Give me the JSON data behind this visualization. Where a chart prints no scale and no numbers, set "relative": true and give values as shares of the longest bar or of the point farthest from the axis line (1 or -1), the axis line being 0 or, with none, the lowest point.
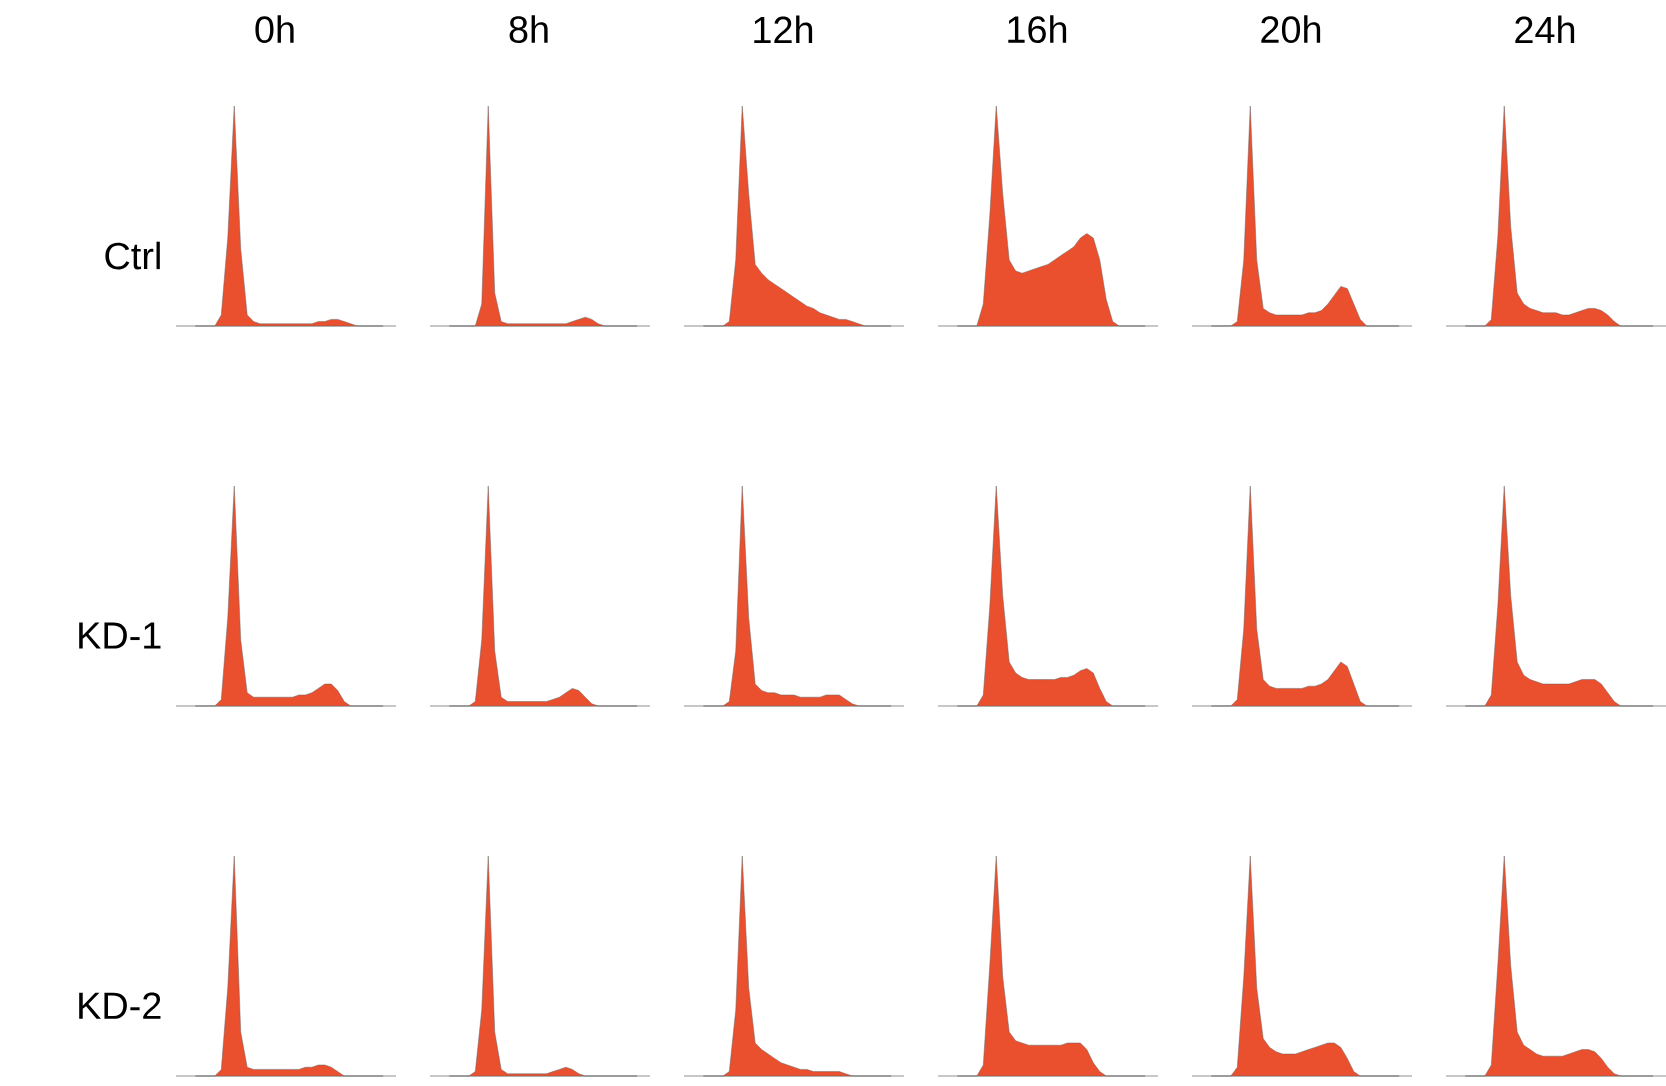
{
  "chart_data": [
    {
      "type": "area",
      "relative": true,
      "title": "0h",
      "ylabel": "Ctrl",
      "color": "#ea4f2e",
      "categories": [
        null,
        null,
        null,
        null,
        null,
        null,
        null,
        null,
        null,
        null,
        null,
        null,
        null,
        null,
        null,
        null,
        null,
        null,
        null,
        null,
        null,
        null,
        null,
        null,
        null,
        null,
        null,
        null,
        null,
        null
      ],
      "values": [
        0,
        0,
        0,
        0,
        0.05,
        0.4,
        1,
        0.35,
        0.05,
        0.02,
        0.01,
        0.01,
        0.01,
        0.01,
        0.01,
        0.01,
        0.01,
        0.01,
        0.01,
        0.02,
        0.02,
        0.03,
        0.03,
        0.02,
        0.01,
        0,
        0,
        0,
        0,
        0
      ]
    },
    {
      "type": "area",
      "relative": true,
      "title": "8h",
      "color": "#ea4f2e",
      "categories": [
        null,
        null,
        null,
        null,
        null,
        null,
        null,
        null,
        null,
        null,
        null,
        null,
        null,
        null,
        null,
        null,
        null,
        null,
        null,
        null,
        null,
        null,
        null,
        null,
        null,
        null,
        null,
        null,
        null,
        null
      ],
      "values": [
        0,
        0,
        0,
        0,
        0,
        0.1,
        1,
        0.15,
        0.02,
        0.01,
        0.01,
        0.01,
        0.01,
        0.01,
        0.01,
        0.01,
        0.01,
        0.01,
        0.01,
        0.02,
        0.03,
        0.04,
        0.03,
        0.01,
        0,
        0,
        0,
        0,
        0,
        0
      ]
    },
    {
      "type": "area",
      "relative": true,
      "title": "12h",
      "color": "#ea4f2e",
      "categories": [
        null,
        null,
        null,
        null,
        null,
        null,
        null,
        null,
        null,
        null,
        null,
        null,
        null,
        null,
        null,
        null,
        null,
        null,
        null,
        null,
        null,
        null,
        null,
        null,
        null,
        null,
        null,
        null,
        null,
        null
      ],
      "values": [
        0,
        0,
        0,
        0,
        0.02,
        0.3,
        1,
        0.6,
        0.28,
        0.24,
        0.21,
        0.19,
        0.17,
        0.15,
        0.13,
        0.11,
        0.09,
        0.08,
        0.06,
        0.05,
        0.04,
        0.03,
        0.03,
        0.02,
        0.01,
        0,
        0,
        0,
        0,
        0
      ]
    },
    {
      "type": "area",
      "relative": true,
      "title": "16h",
      "color": "#ea4f2e",
      "categories": [
        null,
        null,
        null,
        null,
        null,
        null,
        null,
        null,
        null,
        null,
        null,
        null,
        null,
        null,
        null,
        null,
        null,
        null,
        null,
        null,
        null,
        null,
        null,
        null,
        null,
        null,
        null,
        null,
        null,
        null
      ],
      "values": [
        0,
        0,
        0,
        0,
        0.1,
        0.5,
        1,
        0.6,
        0.3,
        0.25,
        0.24,
        0.25,
        0.26,
        0.27,
        0.28,
        0.3,
        0.32,
        0.34,
        0.36,
        0.4,
        0.42,
        0.4,
        0.3,
        0.12,
        0.02,
        0,
        0,
        0,
        0,
        0
      ]
    },
    {
      "type": "area",
      "relative": true,
      "title": "20h",
      "color": "#ea4f2e",
      "categories": [
        null,
        null,
        null,
        null,
        null,
        null,
        null,
        null,
        null,
        null,
        null,
        null,
        null,
        null,
        null,
        null,
        null,
        null,
        null,
        null,
        null,
        null,
        null,
        null,
        null,
        null,
        null,
        null,
        null,
        null
      ],
      "values": [
        0,
        0,
        0,
        0,
        0.02,
        0.3,
        1,
        0.3,
        0.08,
        0.06,
        0.05,
        0.05,
        0.05,
        0.05,
        0.05,
        0.06,
        0.06,
        0.07,
        0.1,
        0.14,
        0.18,
        0.17,
        0.1,
        0.03,
        0,
        0,
        0,
        0,
        0,
        0
      ]
    },
    {
      "type": "area",
      "relative": true,
      "title": "24h",
      "color": "#ea4f2e",
      "categories": [
        null,
        null,
        null,
        null,
        null,
        null,
        null,
        null,
        null,
        null,
        null,
        null,
        null,
        null,
        null,
        null,
        null,
        null,
        null,
        null,
        null,
        null,
        null,
        null,
        null,
        null,
        null,
        null,
        null,
        null
      ],
      "values": [
        0,
        0,
        0,
        0,
        0.03,
        0.4,
        1,
        0.45,
        0.15,
        0.1,
        0.08,
        0.07,
        0.06,
        0.06,
        0.06,
        0.05,
        0.05,
        0.06,
        0.07,
        0.08,
        0.08,
        0.07,
        0.05,
        0.02,
        0,
        0,
        0,
        0,
        0,
        0
      ]
    },
    {
      "type": "area",
      "relative": true,
      "ylabel": "KD-1",
      "color": "#ea4f2e",
      "categories": [
        null,
        null,
        null,
        null,
        null,
        null,
        null,
        null,
        null,
        null,
        null,
        null,
        null,
        null,
        null,
        null,
        null,
        null,
        null,
        null,
        null,
        null,
        null,
        null,
        null,
        null,
        null,
        null,
        null,
        null
      ],
      "values": [
        0,
        0,
        0,
        0,
        0.03,
        0.4,
        1,
        0.3,
        0.06,
        0.04,
        0.04,
        0.04,
        0.04,
        0.04,
        0.04,
        0.04,
        0.05,
        0.05,
        0.06,
        0.08,
        0.1,
        0.1,
        0.07,
        0.02,
        0,
        0,
        0,
        0,
        0,
        0
      ]
    },
    {
      "type": "area",
      "relative": true,
      "color": "#ea4f2e",
      "categories": [
        null,
        null,
        null,
        null,
        null,
        null,
        null,
        null,
        null,
        null,
        null,
        null,
        null,
        null,
        null,
        null,
        null,
        null,
        null,
        null,
        null,
        null,
        null,
        null,
        null,
        null,
        null,
        null,
        null,
        null
      ],
      "values": [
        0,
        0,
        0,
        0,
        0.02,
        0.3,
        1,
        0.25,
        0.04,
        0.02,
        0.02,
        0.02,
        0.02,
        0.02,
        0.02,
        0.02,
        0.03,
        0.04,
        0.06,
        0.08,
        0.07,
        0.04,
        0.01,
        0,
        0,
        0,
        0,
        0,
        0,
        0
      ]
    },
    {
      "type": "area",
      "relative": true,
      "color": "#ea4f2e",
      "categories": [
        null,
        null,
        null,
        null,
        null,
        null,
        null,
        null,
        null,
        null,
        null,
        null,
        null,
        null,
        null,
        null,
        null,
        null,
        null,
        null,
        null,
        null,
        null,
        null,
        null,
        null,
        null,
        null,
        null,
        null
      ],
      "values": [
        0,
        0,
        0,
        0,
        0.02,
        0.25,
        1,
        0.4,
        0.1,
        0.07,
        0.06,
        0.06,
        0.05,
        0.05,
        0.05,
        0.04,
        0.04,
        0.04,
        0.04,
        0.05,
        0.05,
        0.05,
        0.03,
        0.01,
        0,
        0,
        0,
        0,
        0,
        0
      ]
    },
    {
      "type": "area",
      "relative": true,
      "color": "#ea4f2e",
      "categories": [
        null,
        null,
        null,
        null,
        null,
        null,
        null,
        null,
        null,
        null,
        null,
        null,
        null,
        null,
        null,
        null,
        null,
        null,
        null,
        null,
        null,
        null,
        null,
        null,
        null,
        null,
        null,
        null,
        null,
        null
      ],
      "values": [
        0,
        0,
        0,
        0,
        0.05,
        0.45,
        1,
        0.5,
        0.2,
        0.15,
        0.13,
        0.12,
        0.12,
        0.12,
        0.12,
        0.12,
        0.13,
        0.13,
        0.14,
        0.16,
        0.17,
        0.15,
        0.08,
        0.02,
        0,
        0,
        0,
        0,
        0,
        0
      ]
    },
    {
      "type": "area",
      "relative": true,
      "color": "#ea4f2e",
      "categories": [
        null,
        null,
        null,
        null,
        null,
        null,
        null,
        null,
        null,
        null,
        null,
        null,
        null,
        null,
        null,
        null,
        null,
        null,
        null,
        null,
        null,
        null,
        null,
        null,
        null,
        null,
        null,
        null,
        null,
        null
      ],
      "values": [
        0,
        0,
        0,
        0,
        0.03,
        0.35,
        1,
        0.35,
        0.12,
        0.09,
        0.08,
        0.08,
        0.08,
        0.08,
        0.08,
        0.09,
        0.09,
        0.1,
        0.12,
        0.16,
        0.2,
        0.18,
        0.1,
        0.02,
        0,
        0,
        0,
        0,
        0,
        0
      ]
    },
    {
      "type": "area",
      "relative": true,
      "color": "#ea4f2e",
      "categories": [
        null,
        null,
        null,
        null,
        null,
        null,
        null,
        null,
        null,
        null,
        null,
        null,
        null,
        null,
        null,
        null,
        null,
        null,
        null,
        null,
        null,
        null,
        null,
        null,
        null,
        null,
        null,
        null,
        null,
        null
      ],
      "values": [
        0,
        0,
        0,
        0,
        0.05,
        0.45,
        1,
        0.5,
        0.2,
        0.14,
        0.12,
        0.11,
        0.1,
        0.1,
        0.1,
        0.1,
        0.1,
        0.11,
        0.12,
        0.12,
        0.12,
        0.1,
        0.06,
        0.02,
        0,
        0,
        0,
        0,
        0,
        0
      ]
    },
    {
      "type": "area",
      "relative": true,
      "ylabel": "KD-2",
      "color": "#ea4f2e",
      "categories": [
        null,
        null,
        null,
        null,
        null,
        null,
        null,
        null,
        null,
        null,
        null,
        null,
        null,
        null,
        null,
        null,
        null,
        null,
        null,
        null,
        null,
        null,
        null,
        null,
        null,
        null,
        null,
        null,
        null,
        null
      ],
      "values": [
        0,
        0,
        0,
        0,
        0.03,
        0.4,
        1,
        0.2,
        0.04,
        0.03,
        0.03,
        0.03,
        0.03,
        0.03,
        0.03,
        0.03,
        0.03,
        0.04,
        0.04,
        0.05,
        0.05,
        0.04,
        0.02,
        0,
        0,
        0,
        0,
        0,
        0,
        0
      ]
    },
    {
      "type": "area",
      "relative": true,
      "color": "#ea4f2e",
      "categories": [
        null,
        null,
        null,
        null,
        null,
        null,
        null,
        null,
        null,
        null,
        null,
        null,
        null,
        null,
        null,
        null,
        null,
        null,
        null,
        null,
        null,
        null,
        null,
        null,
        null,
        null,
        null,
        null,
        null,
        null
      ],
      "values": [
        0,
        0,
        0,
        0,
        0.02,
        0.3,
        1,
        0.2,
        0.03,
        0.01,
        0.01,
        0.01,
        0.01,
        0.01,
        0.01,
        0.01,
        0.02,
        0.03,
        0.04,
        0.03,
        0.01,
        0,
        0,
        0,
        0,
        0,
        0,
        0,
        0,
        0
      ]
    },
    {
      "type": "area",
      "relative": true,
      "color": "#ea4f2e",
      "categories": [
        null,
        null,
        null,
        null,
        null,
        null,
        null,
        null,
        null,
        null,
        null,
        null,
        null,
        null,
        null,
        null,
        null,
        null,
        null,
        null,
        null,
        null,
        null,
        null,
        null,
        null,
        null,
        null,
        null,
        null
      ],
      "values": [
        0,
        0,
        0,
        0,
        0.02,
        0.3,
        1,
        0.4,
        0.15,
        0.12,
        0.1,
        0.08,
        0.06,
        0.05,
        0.04,
        0.03,
        0.03,
        0.02,
        0.02,
        0.02,
        0.02,
        0.02,
        0.01,
        0,
        0,
        0,
        0,
        0,
        0,
        0
      ]
    },
    {
      "type": "area",
      "relative": true,
      "color": "#ea4f2e",
      "categories": [
        null,
        null,
        null,
        null,
        null,
        null,
        null,
        null,
        null,
        null,
        null,
        null,
        null,
        null,
        null,
        null,
        null,
        null,
        null,
        null,
        null,
        null,
        null,
        null,
        null,
        null,
        null,
        null,
        null,
        null
      ],
      "values": [
        0,
        0,
        0,
        0,
        0.05,
        0.5,
        1,
        0.45,
        0.2,
        0.16,
        0.15,
        0.14,
        0.14,
        0.14,
        0.14,
        0.14,
        0.14,
        0.15,
        0.15,
        0.15,
        0.12,
        0.06,
        0.02,
        0,
        0,
        0,
        0,
        0,
        0,
        0
      ]
    },
    {
      "type": "area",
      "relative": true,
      "color": "#ea4f2e",
      "categories": [
        null,
        null,
        null,
        null,
        null,
        null,
        null,
        null,
        null,
        null,
        null,
        null,
        null,
        null,
        null,
        null,
        null,
        null,
        null,
        null,
        null,
        null,
        null,
        null,
        null,
        null,
        null,
        null,
        null,
        null
      ],
      "values": [
        0,
        0,
        0,
        0,
        0.04,
        0.45,
        1,
        0.4,
        0.17,
        0.13,
        0.11,
        0.1,
        0.1,
        0.1,
        0.11,
        0.12,
        0.13,
        0.14,
        0.15,
        0.15,
        0.13,
        0.08,
        0.02,
        0,
        0,
        0,
        0,
        0,
        0,
        0
      ]
    },
    {
      "type": "area",
      "relative": true,
      "color": "#ea4f2e",
      "categories": [
        null,
        null,
        null,
        null,
        null,
        null,
        null,
        null,
        null,
        null,
        null,
        null,
        null,
        null,
        null,
        null,
        null,
        null,
        null,
        null,
        null,
        null,
        null,
        null,
        null,
        null,
        null,
        null,
        null,
        null
      ],
      "values": [
        0,
        0,
        0,
        0,
        0.05,
        0.5,
        1,
        0.5,
        0.2,
        0.14,
        0.12,
        0.1,
        0.09,
        0.09,
        0.09,
        0.09,
        0.1,
        0.11,
        0.12,
        0.12,
        0.11,
        0.08,
        0.04,
        0.01,
        0,
        0,
        0,
        0,
        0,
        0
      ]
    }
  ]
}
